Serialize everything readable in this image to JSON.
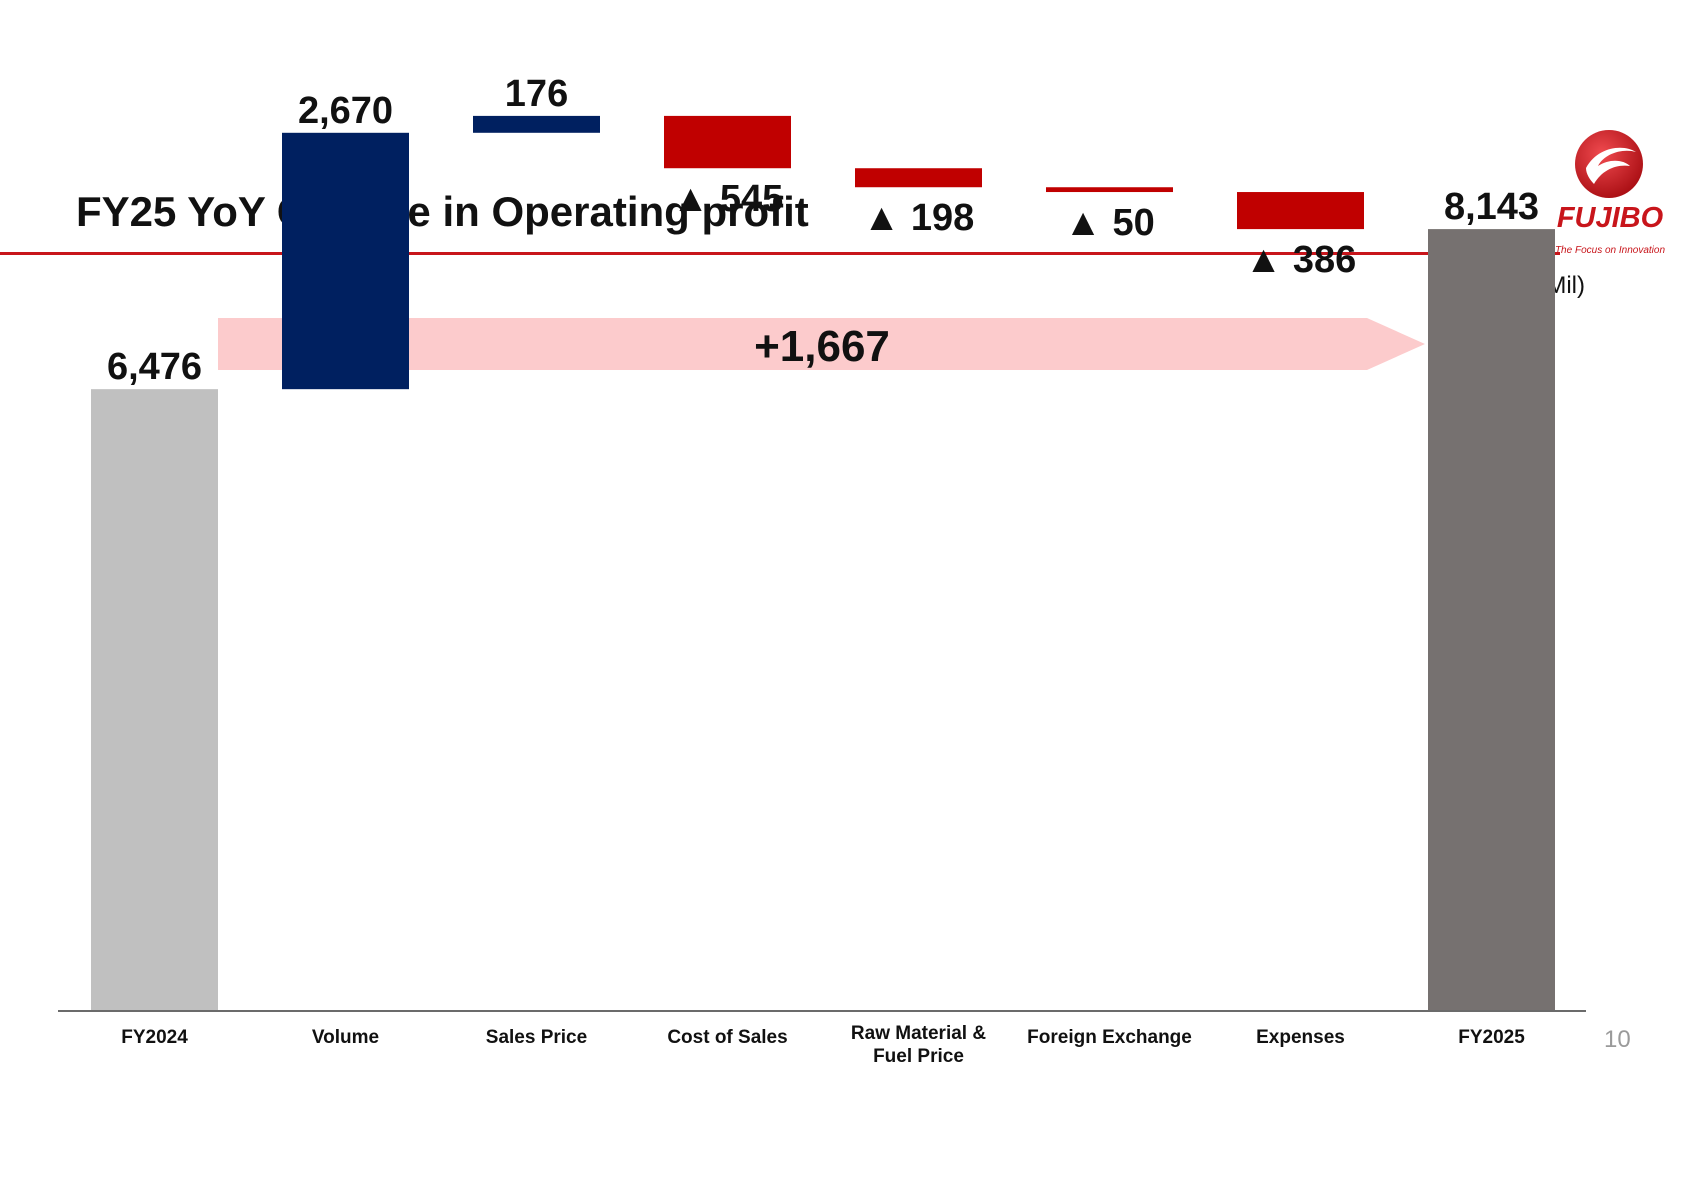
{
  "page": {
    "title": "FY25 YoY Change in Operating profit",
    "unit_label": "(JPY Mil)",
    "page_number": "10"
  },
  "logo": {
    "name": "FUJIBO",
    "tagline": "The Focus on Innovation",
    "color": "#c8151b"
  },
  "banner": {
    "label": "+1,667",
    "color": "#fccbcc"
  },
  "colors": {
    "start_total": "#c0c0c0",
    "end_total": "#767170",
    "increase": "#002060",
    "decrease": "#c00000",
    "axis": "#6b6b6b"
  },
  "chart_data": {
    "type": "waterfall",
    "title": "FY25 YoY Change in Operating profit",
    "unit": "(JPY Mil)",
    "negative_marker": "▲",
    "categories": [
      "FY2024",
      "Volume",
      "Sales Price",
      "Cost of Sales",
      "Raw Material &\nFuel Price",
      "Foreign Exchange",
      "Expenses",
      "FY2025"
    ],
    "values": [
      6476,
      2670,
      176,
      -545,
      -198,
      -50,
      -386,
      8143
    ],
    "kinds": [
      "total",
      "delta",
      "delta",
      "delta",
      "delta",
      "delta",
      "delta",
      "total"
    ],
    "value_labels": [
      "6,476",
      "2,670",
      "176",
      "545",
      "198",
      "50",
      "386",
      "8,143"
    ],
    "total_change": 1667,
    "total_change_label": "+1,667",
    "ylim": [
      0,
      9800
    ],
    "grid": false,
    "legend": "none"
  }
}
